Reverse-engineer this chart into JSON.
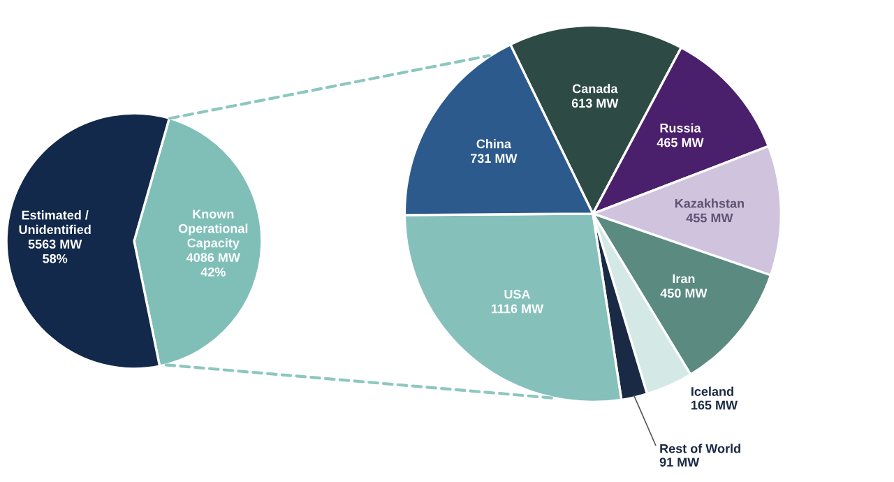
{
  "chart_data": [
    {
      "type": "pie",
      "categories": [
        "Known\nOperational\nCapacity",
        "Estimated /\nUnidentified"
      ],
      "values": [
        4086,
        5563
      ],
      "colors": [
        "#7fbfb8",
        "#13294b"
      ],
      "value_labels": [
        "4086 MW\n42%",
        "5563 MW\n58%"
      ]
    },
    {
      "type": "pie",
      "categories": [
        "Canada",
        "Russia",
        "Kazakhstan",
        "Iran",
        "Iceland",
        "Rest of World",
        "USA",
        "China"
      ],
      "values": [
        613,
        465,
        455,
        450,
        165,
        91,
        1116,
        731
      ],
      "colors": [
        "#2e4a45",
        "#4a1f6b",
        "#cfc3dd",
        "#5a8a80",
        "#d4e9e6",
        "#1b2a44",
        "#86c0bb",
        "#2d5a8c"
      ],
      "value_labels": [
        "613 MW",
        "465 MW",
        "455 MW",
        "450 MW",
        "165 MW",
        "91 MW",
        "1116 MW",
        "731 MW"
      ]
    }
  ]
}
